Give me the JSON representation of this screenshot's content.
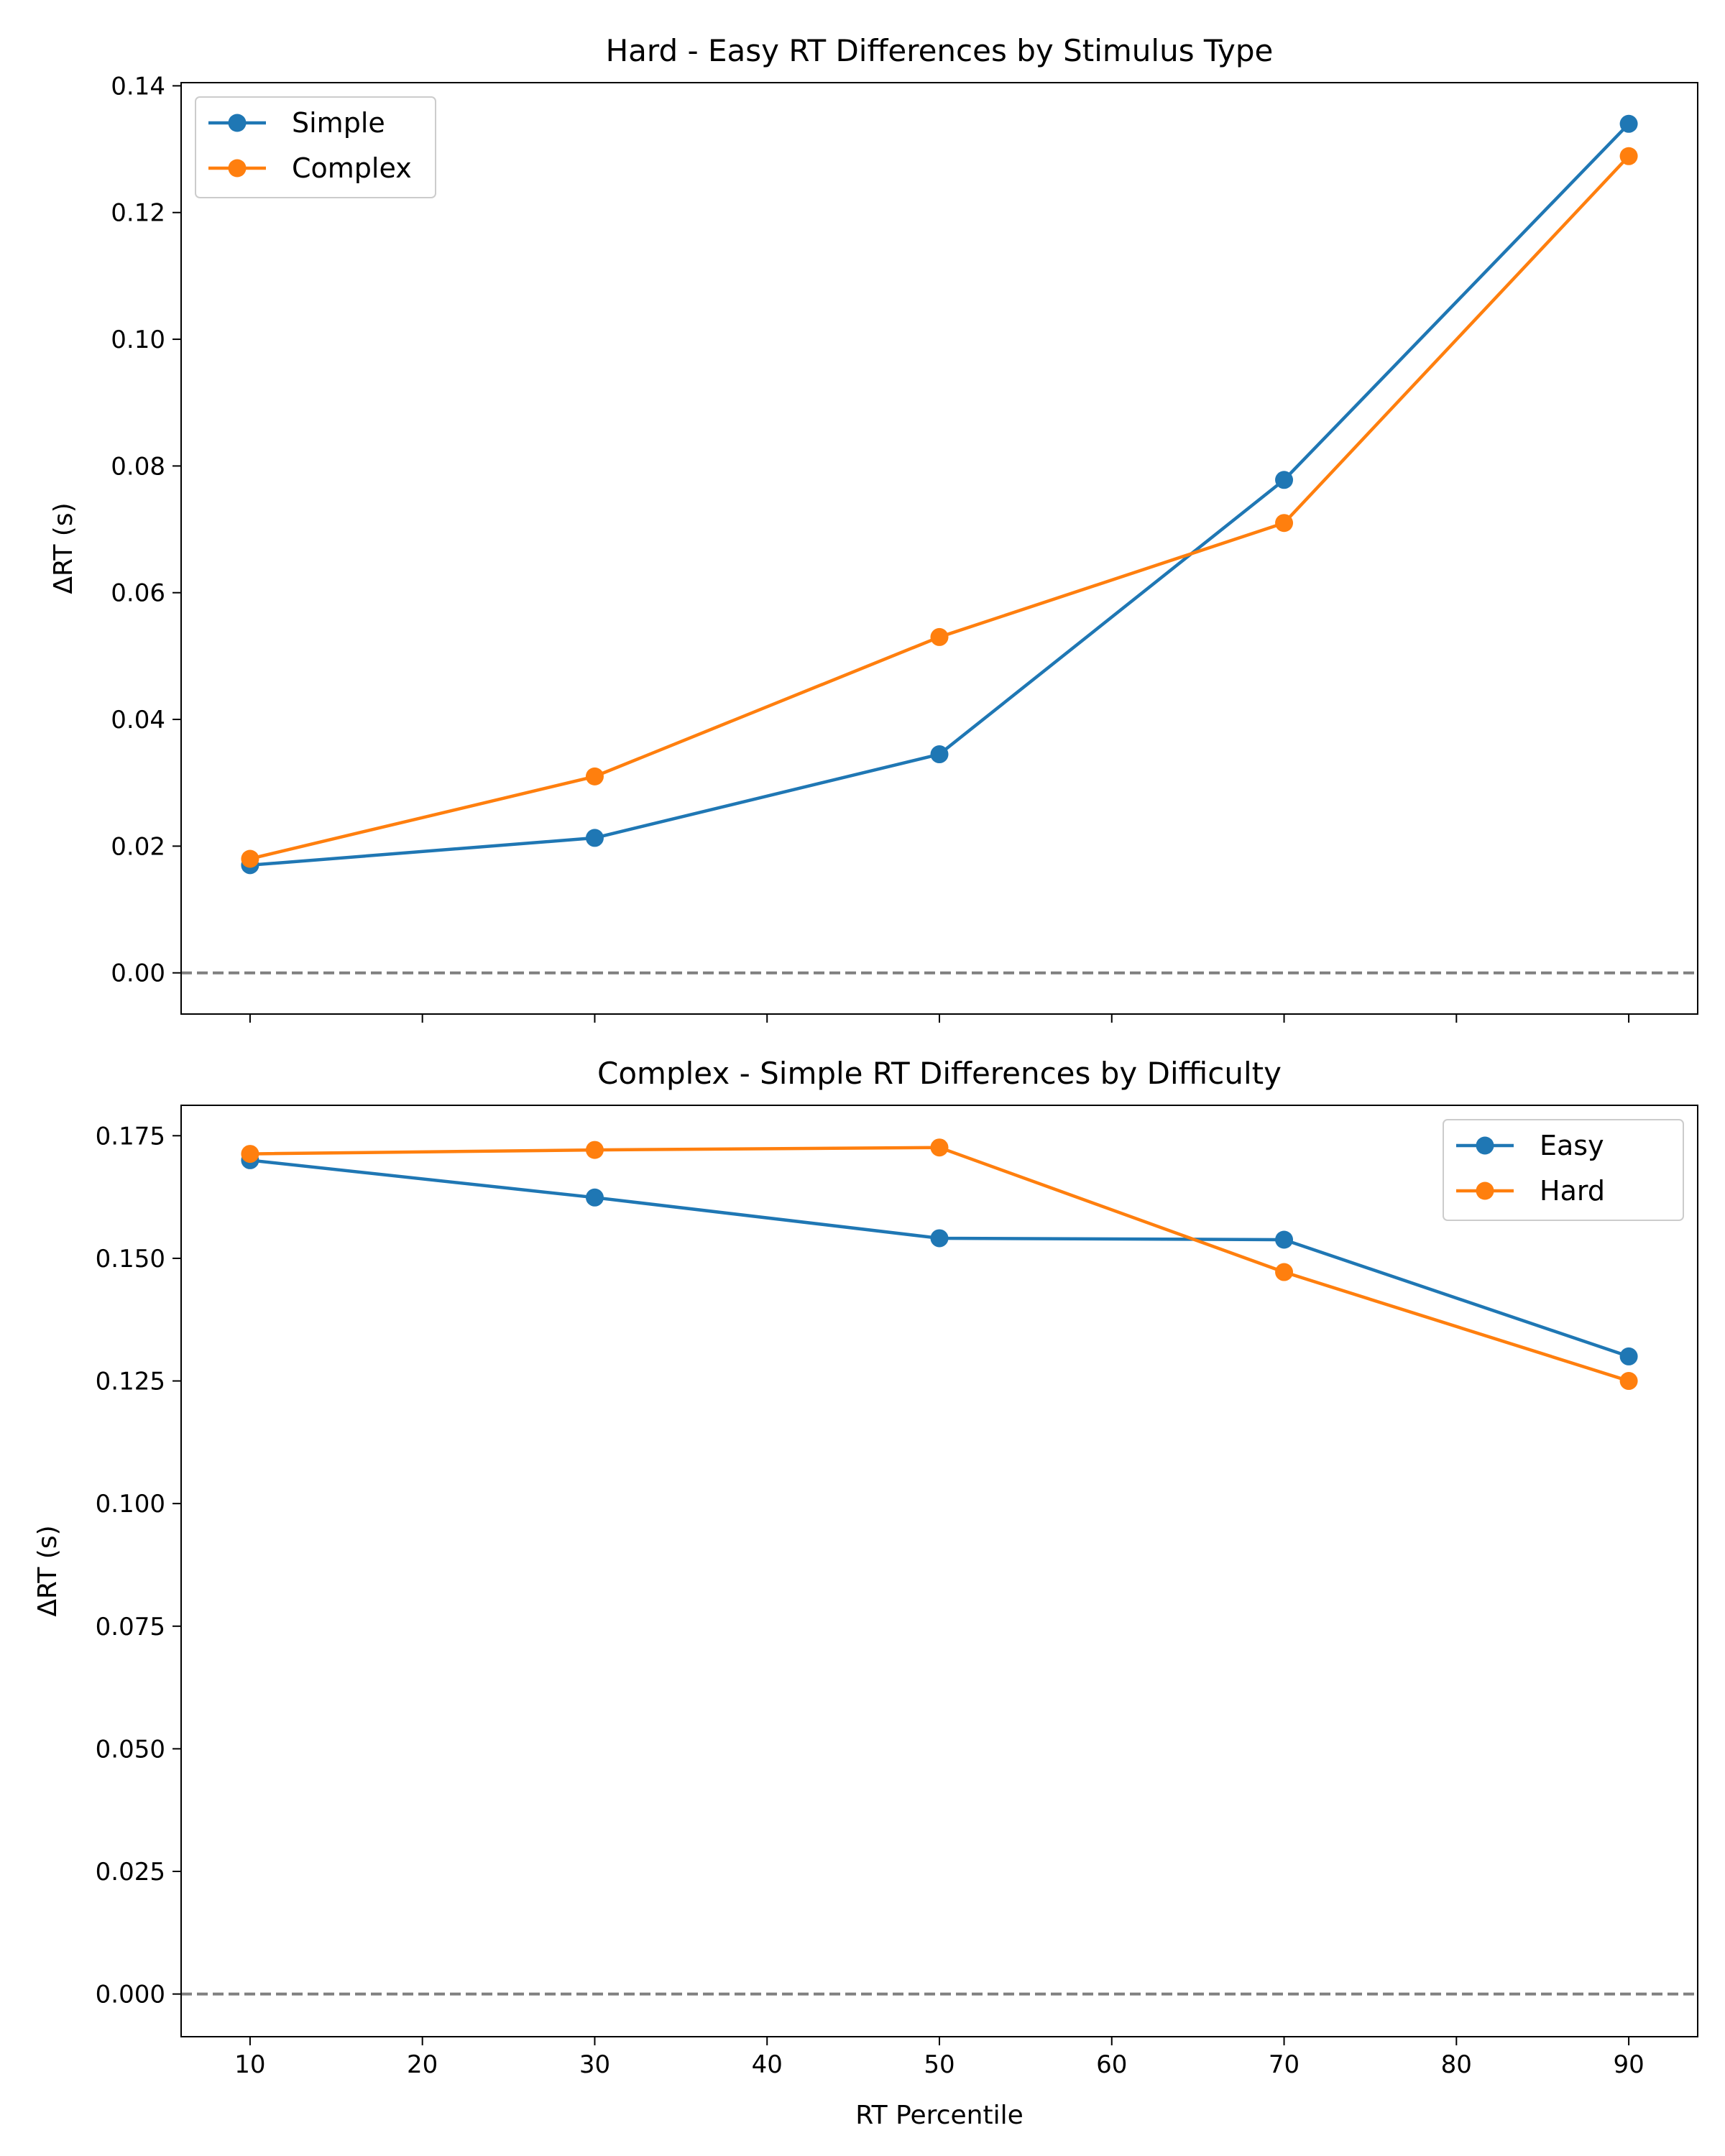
{
  "chart_data": [
    {
      "type": "line",
      "title": "Hard - Easy RT Differences by Stimulus Type",
      "xlabel": "",
      "ylabel": "ΔRT (s)",
      "x": [
        10,
        30,
        50,
        70,
        90
      ],
      "xlim": [
        6,
        94
      ],
      "ylim": [
        -0.0065,
        0.1405
      ],
      "xticks": [
        10,
        20,
        30,
        40,
        50,
        60,
        70,
        80,
        90
      ],
      "show_xtick_labels": false,
      "yticks": [
        0.0,
        0.02,
        0.04,
        0.06,
        0.08,
        0.1,
        0.12,
        0.14
      ],
      "ytick_labels": [
        "0.00",
        "0.02",
        "0.04",
        "0.06",
        "0.08",
        "0.10",
        "0.12",
        "0.14"
      ],
      "zero_line": true,
      "grid": false,
      "legend_position": "top-left",
      "series": [
        {
          "name": "Simple",
          "color": "#1f77b4",
          "values": [
            0.017,
            0.0213,
            0.0345,
            0.0778,
            0.134
          ]
        },
        {
          "name": "Complex",
          "color": "#ff7f0e",
          "values": [
            0.018,
            0.031,
            0.053,
            0.071,
            0.1289
          ]
        }
      ]
    },
    {
      "type": "line",
      "title": "Complex - Simple RT Differences by Difficulty",
      "xlabel": "RT Percentile",
      "ylabel": "ΔRT (s)",
      "x": [
        10,
        30,
        50,
        70,
        90
      ],
      "xlim": [
        6,
        94
      ],
      "ylim": [
        -0.0087,
        0.1812
      ],
      "xticks": [
        10,
        20,
        30,
        40,
        50,
        60,
        70,
        80,
        90
      ],
      "xtick_labels": [
        "10",
        "20",
        "30",
        "40",
        "50",
        "60",
        "70",
        "80",
        "90"
      ],
      "show_xtick_labels": true,
      "yticks": [
        0.0,
        0.025,
        0.05,
        0.075,
        0.1,
        0.125,
        0.15,
        0.175
      ],
      "ytick_labels": [
        "0.000",
        "0.025",
        "0.050",
        "0.075",
        "0.100",
        "0.125",
        "0.150",
        "0.175"
      ],
      "zero_line": true,
      "grid": false,
      "legend_position": "top-right",
      "series": [
        {
          "name": "Easy",
          "color": "#1f77b4",
          "values": [
            0.17,
            0.1624,
            0.1541,
            0.1538,
            0.13
          ]
        },
        {
          "name": "Hard",
          "color": "#ff7f0e",
          "values": [
            0.1713,
            0.1721,
            0.1726,
            0.1472,
            0.125
          ]
        }
      ]
    }
  ]
}
